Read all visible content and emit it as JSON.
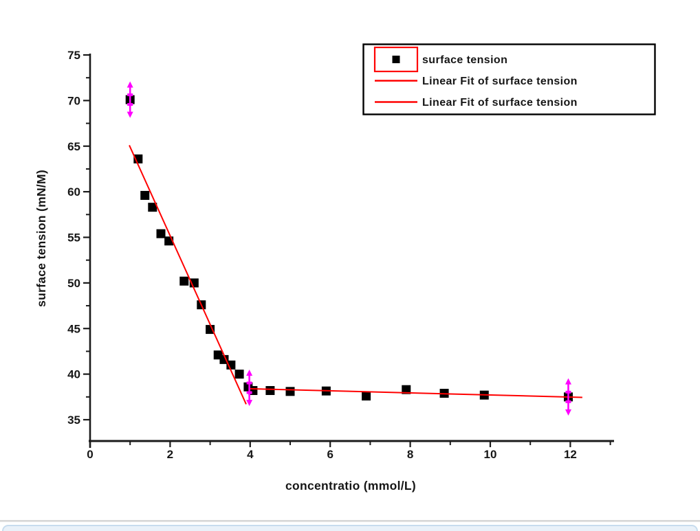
{
  "chart_data": {
    "type": "scatter",
    "title": "",
    "xlabel": "concentratio (mmol/L)",
    "ylabel": "surface tension (mN/M)",
    "xlim": [
      0,
      13
    ],
    "ylim": [
      32.5,
      75.5
    ],
    "grid": false,
    "x_major_ticks": [
      0,
      2,
      4,
      6,
      8,
      10,
      12
    ],
    "x_minor_ticks": [
      1,
      3,
      5,
      7,
      9,
      11,
      13
    ],
    "y_major_ticks": [
      35,
      40,
      45,
      50,
      55,
      60,
      65,
      70,
      75
    ],
    "y_minor_ticks": [
      37.5,
      42.5,
      47.5,
      52.5,
      57.5,
      62.5,
      67.5,
      72.5
    ],
    "series": [
      {
        "name": "surface tension",
        "type": "scatter",
        "marker": "square",
        "color": "#000000",
        "points": [
          [
            1.0,
            70.1
          ],
          [
            1.2,
            63.6
          ],
          [
            1.37,
            59.6
          ],
          [
            1.56,
            58.3
          ],
          [
            1.77,
            55.4
          ],
          [
            1.97,
            54.6
          ],
          [
            2.35,
            50.2
          ],
          [
            2.6,
            50.0
          ],
          [
            2.78,
            47.6
          ],
          [
            3.0,
            44.9
          ],
          [
            3.2,
            42.1
          ],
          [
            3.35,
            41.6
          ],
          [
            3.52,
            41.0
          ],
          [
            3.73,
            40.0
          ],
          [
            3.95,
            38.6
          ],
          [
            4.07,
            38.2
          ],
          [
            4.5,
            38.2
          ],
          [
            5.0,
            38.1
          ],
          [
            5.9,
            38.15
          ],
          [
            6.9,
            37.6
          ],
          [
            7.9,
            38.3
          ],
          [
            8.85,
            37.9
          ],
          [
            9.85,
            37.7
          ],
          [
            11.95,
            37.5
          ]
        ]
      },
      {
        "name": "Linear Fit of surface tension",
        "type": "line",
        "color": "#ff0000",
        "x": [
          0.98,
          3.9
        ],
        "y": [
          65.1,
          36.7
        ]
      },
      {
        "name": "Linear Fit of surface tension",
        "type": "line",
        "color": "#ff0000",
        "x": [
          3.98,
          12.3
        ],
        "y": [
          38.4,
          37.45
        ]
      }
    ],
    "error_bars": {
      "color": "#ff00ff",
      "style": "double-headed-arrow",
      "points": [
        [
          1.0,
          70.1,
          2.0
        ],
        [
          3.98,
          38.5,
          2.0
        ],
        [
          11.95,
          37.5,
          2.05
        ]
      ]
    },
    "legend": {
      "position": "top-right",
      "border_color": "#000000",
      "background": "#ffffff",
      "highlight_box_color": "#ff0000",
      "entries": [
        {
          "swatch": "marker",
          "label": "surface tension",
          "highlighted": true
        },
        {
          "swatch": "line",
          "label": "Linear Fit of surface tension",
          "highlighted": false
        },
        {
          "swatch": "line",
          "label": "Linear Fit of surface tension",
          "highlighted": false
        }
      ]
    },
    "colors": {
      "axis": "#1a1a1a",
      "marker": "#000000",
      "fit_line": "#ff0000",
      "error_bar": "#ff00ff"
    }
  },
  "bottom_panel": {
    "divider_color": "#e0e0e0",
    "edge_border_color": "#c7dcee",
    "edge_fill_color": "#e9f1f9"
  }
}
